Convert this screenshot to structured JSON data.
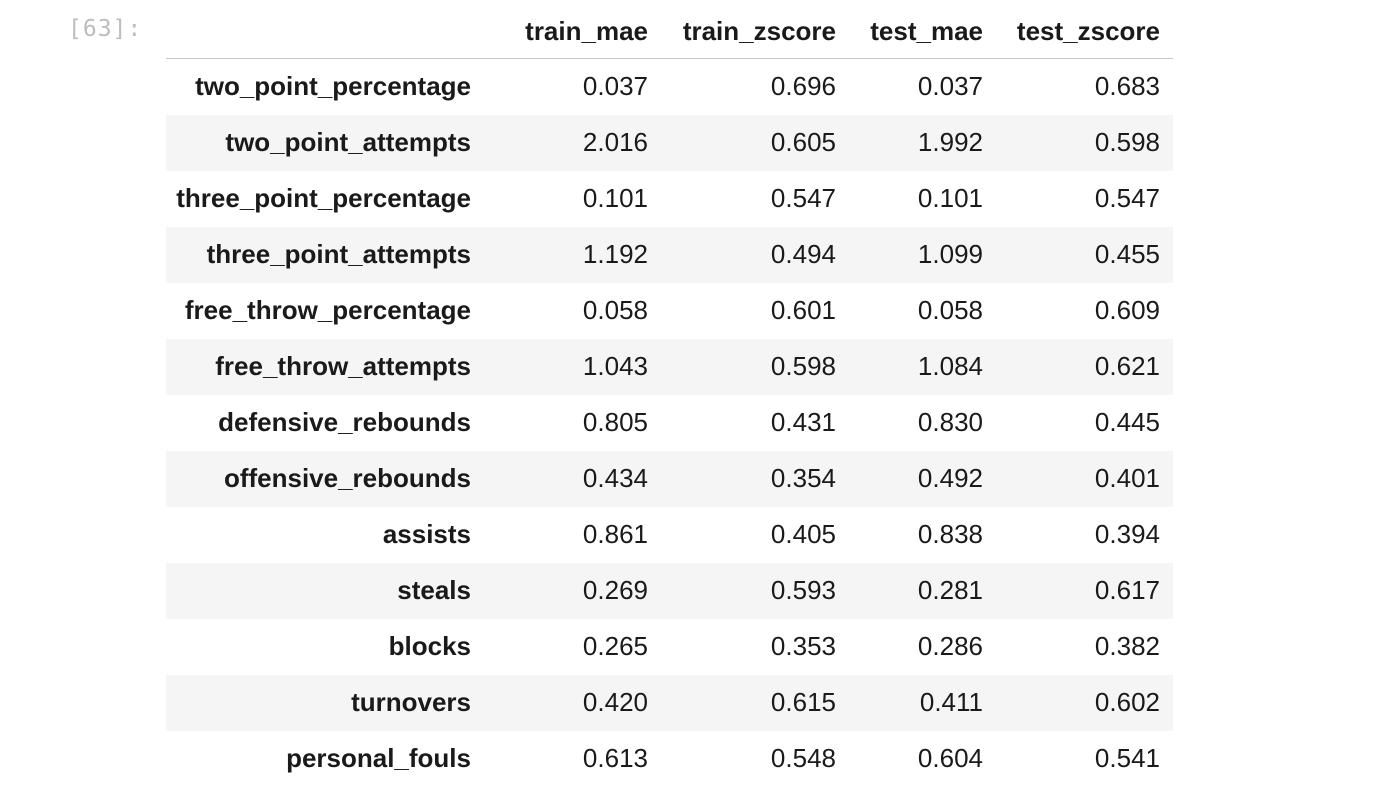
{
  "cell": {
    "prompt": "[63]:"
  },
  "table": {
    "columns": [
      "",
      "train_mae",
      "train_zscore",
      "test_mae",
      "test_zscore"
    ],
    "rows": [
      {
        "index": "two_point_percentage",
        "values": [
          "0.037",
          "0.696",
          "0.037",
          "0.683"
        ]
      },
      {
        "index": "two_point_attempts",
        "values": [
          "2.016",
          "0.605",
          "1.992",
          "0.598"
        ]
      },
      {
        "index": "three_point_percentage",
        "values": [
          "0.101",
          "0.547",
          "0.101",
          "0.547"
        ]
      },
      {
        "index": "three_point_attempts",
        "values": [
          "1.192",
          "0.494",
          "1.099",
          "0.455"
        ]
      },
      {
        "index": "free_throw_percentage",
        "values": [
          "0.058",
          "0.601",
          "0.058",
          "0.609"
        ]
      },
      {
        "index": "free_throw_attempts",
        "values": [
          "1.043",
          "0.598",
          "1.084",
          "0.621"
        ]
      },
      {
        "index": "defensive_rebounds",
        "values": [
          "0.805",
          "0.431",
          "0.830",
          "0.445"
        ]
      },
      {
        "index": "offensive_rebounds",
        "values": [
          "0.434",
          "0.354",
          "0.492",
          "0.401"
        ]
      },
      {
        "index": "assists",
        "values": [
          "0.861",
          "0.405",
          "0.838",
          "0.394"
        ]
      },
      {
        "index": "steals",
        "values": [
          "0.269",
          "0.593",
          "0.281",
          "0.617"
        ]
      },
      {
        "index": "blocks",
        "values": [
          "0.265",
          "0.353",
          "0.286",
          "0.382"
        ]
      },
      {
        "index": "turnovers",
        "values": [
          "0.420",
          "0.615",
          "0.411",
          "0.602"
        ]
      },
      {
        "index": "personal_fouls",
        "values": [
          "0.613",
          "0.548",
          "0.604",
          "0.541"
        ]
      }
    ]
  }
}
